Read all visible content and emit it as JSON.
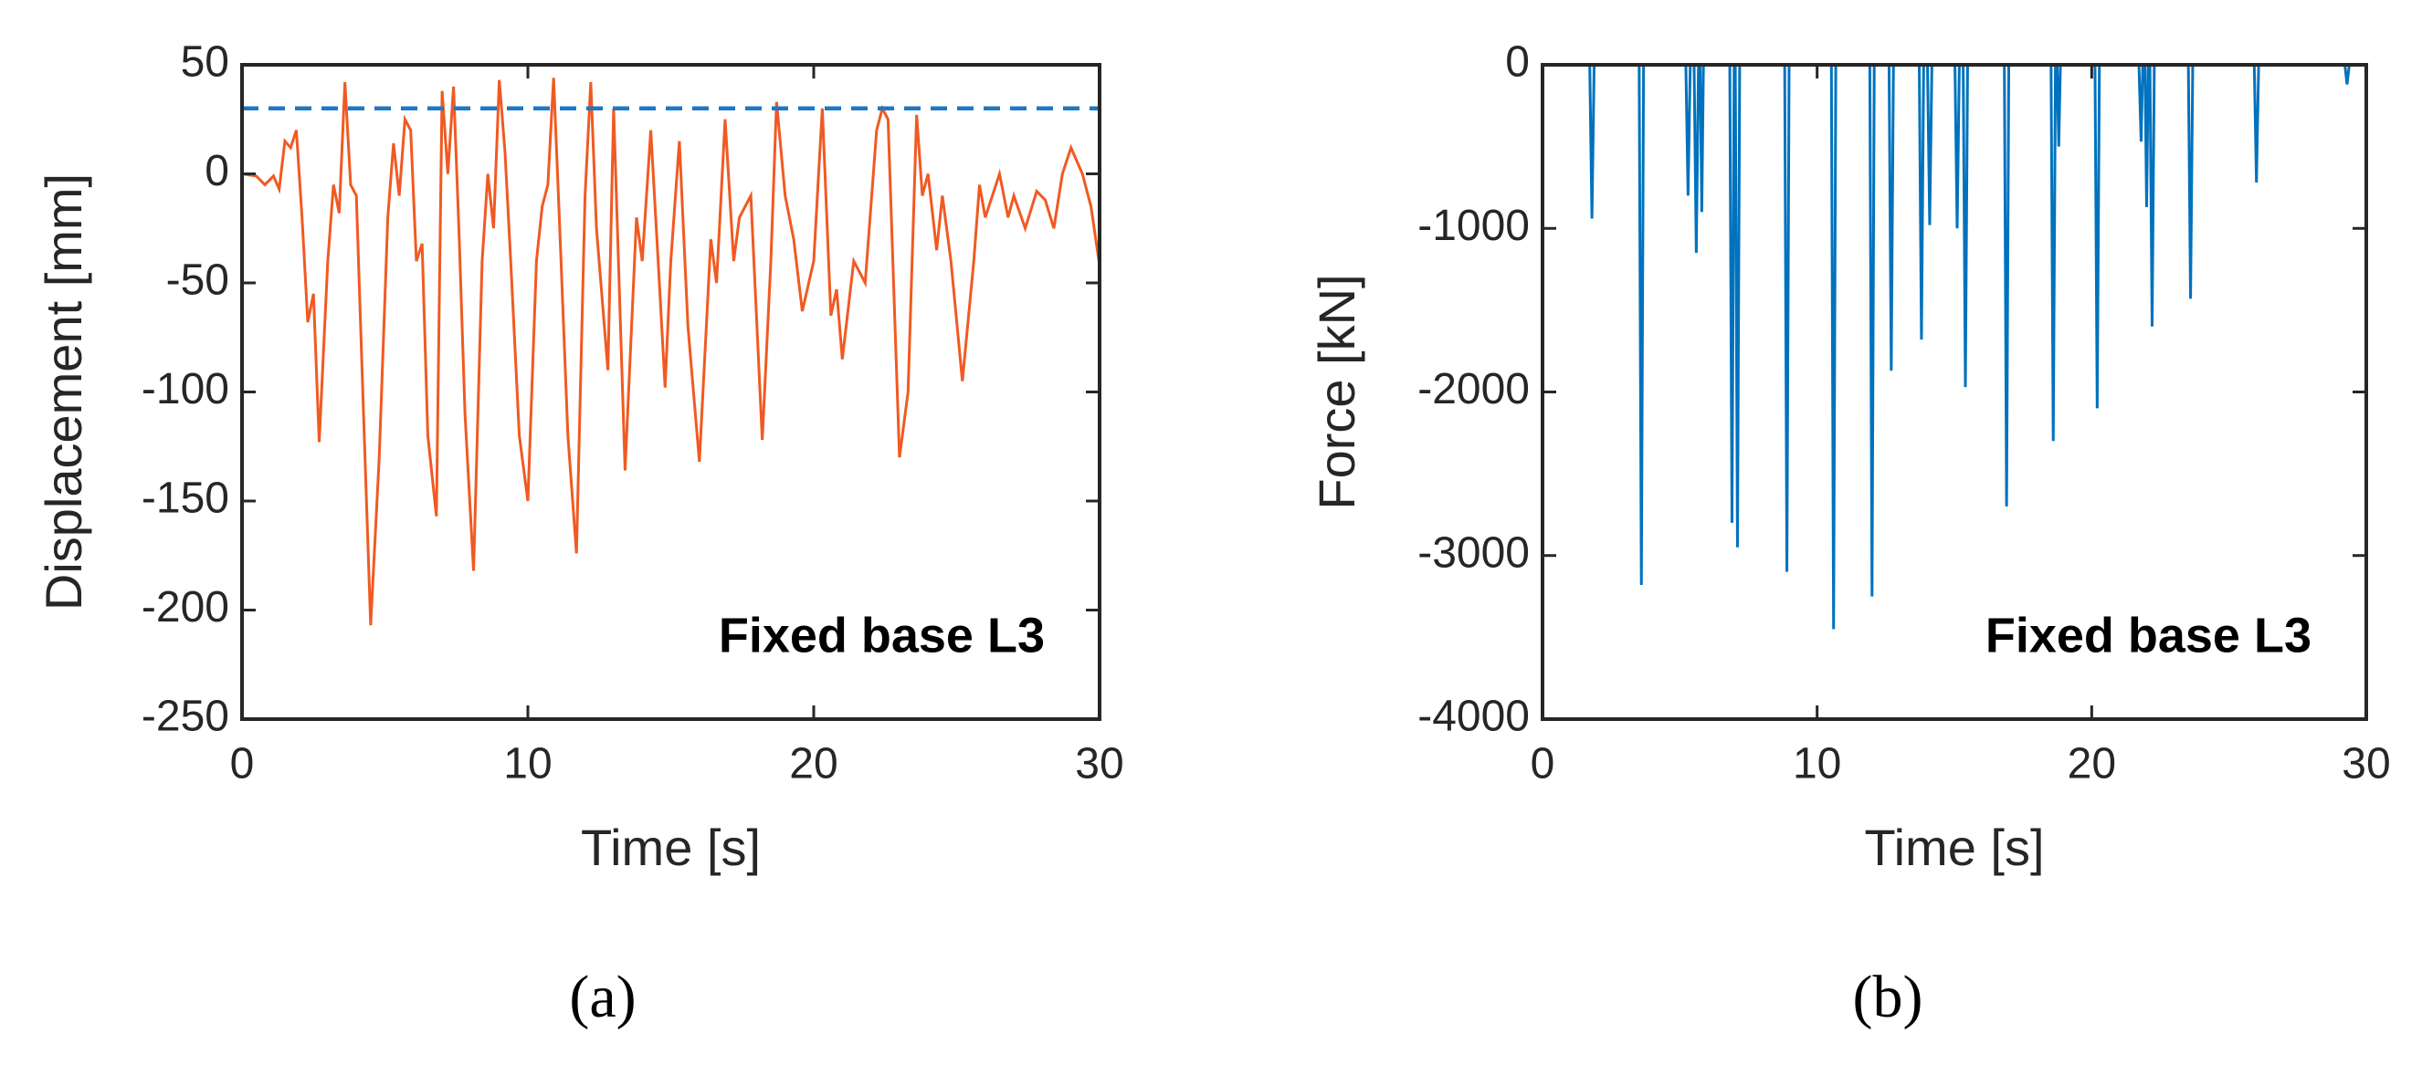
{
  "chart_data": [
    {
      "type": "line",
      "ylabel": "Displacement [mm]",
      "xlabel": "Time [s]",
      "annotation": "Fixed base L3",
      "label": "(a)",
      "xlim": [
        0,
        30
      ],
      "ylim": [
        -250,
        50
      ],
      "xticks": [
        0,
        10,
        20,
        30
      ],
      "yticks": [
        -250,
        -200,
        -150,
        -100,
        -50,
        0,
        50
      ],
      "series": [
        {
          "color": "#f05a22",
          "dashed": false,
          "x": [
            0,
            0.5,
            0.8,
            1.1,
            1.3,
            1.5,
            1.7,
            1.9,
            2.1,
            2.3,
            2.5,
            2.7,
            3.0,
            3.2,
            3.4,
            3.6,
            3.8,
            4.0,
            4.2,
            4.5,
            4.8,
            5.1,
            5.3,
            5.5,
            5.7,
            5.9,
            6.1,
            6.3,
            6.5,
            6.8,
            7.0,
            7.2,
            7.4,
            7.6,
            7.8,
            8.1,
            8.4,
            8.6,
            8.8,
            9.0,
            9.2,
            9.4,
            9.7,
            10.0,
            10.3,
            10.5,
            10.7,
            10.9,
            11.1,
            11.4,
            11.7,
            12.0,
            12.2,
            12.4,
            12.8,
            13.0,
            13.4,
            13.8,
            14.0,
            14.3,
            14.6,
            14.8,
            15.0,
            15.3,
            15.6,
            16.0,
            16.4,
            16.6,
            16.9,
            17.2,
            17.4,
            17.8,
            18.2,
            18.5,
            18.7,
            19.0,
            19.3,
            19.6,
            20.0,
            20.3,
            20.6,
            20.8,
            21.0,
            21.4,
            21.8,
            22.2,
            22.4,
            22.6,
            23.0,
            23.3,
            23.6,
            23.8,
            24.0,
            24.3,
            24.5,
            24.8,
            25.2,
            25.6,
            25.8,
            26.0,
            26.5,
            26.8,
            27.0,
            27.4,
            27.8,
            28.1,
            28.4,
            28.7,
            29.0,
            29.4,
            29.7,
            30.0
          ],
          "values": [
            0,
            -1,
            -5,
            -1,
            -7,
            15,
            12,
            20,
            -20,
            -68,
            -55,
            -123,
            -40,
            -5,
            -18,
            42,
            -5,
            -10,
            -90,
            -207,
            -130,
            -20,
            14,
            -10,
            25,
            20,
            -40,
            -32,
            -120,
            -157,
            38,
            0,
            40,
            -30,
            -110,
            -182,
            -40,
            0,
            -25,
            43,
            10,
            -40,
            -120,
            -150,
            -40,
            -15,
            -5,
            44,
            -20,
            -120,
            -174,
            -10,
            42,
            -25,
            -90,
            30,
            -136,
            -20,
            -40,
            20,
            -50,
            -98,
            -40,
            15,
            -70,
            -132,
            -30,
            -50,
            25,
            -40,
            -20,
            -10,
            -122,
            -40,
            33,
            -10,
            -30,
            -63,
            -40,
            30,
            -65,
            -53,
            -85,
            -40,
            -50,
            20,
            30,
            25,
            -130,
            -100,
            27,
            -10,
            0,
            -35,
            -10,
            -40,
            -95,
            -40,
            -5,
            -20,
            0,
            -20,
            -10,
            -25,
            -8,
            -12,
            -25,
            0,
            12,
            0,
            -15,
            -42
          ]
        },
        {
          "color": "#1f77c4",
          "dashed": true,
          "x": [
            0,
            30
          ],
          "values": [
            30,
            30
          ]
        }
      ]
    },
    {
      "type": "line",
      "ylabel": "Force [kN]",
      "xlabel": "Time [s]",
      "annotation": "Fixed base L3",
      "label": "(b)",
      "xlim": [
        0,
        30
      ],
      "ylim": [
        -4000,
        0
      ],
      "xticks": [
        0,
        10,
        20,
        30
      ],
      "yticks": [
        -4000,
        -3000,
        -2000,
        -1000,
        0
      ],
      "series": [
        {
          "color": "#0072bd",
          "dashed": false,
          "x": [
            0,
            1.72,
            1.8,
            1.88,
            3.52,
            3.6,
            3.68,
            5.22,
            5.3,
            5.38,
            5.52,
            5.6,
            5.68,
            5.74,
            5.8,
            5.86,
            6.82,
            6.9,
            6.98,
            7.02,
            7.1,
            7.18,
            8.82,
            8.9,
            8.98,
            10.52,
            10.6,
            10.68,
            11.92,
            12.0,
            12.08,
            12.62,
            12.7,
            12.78,
            13.72,
            13.8,
            13.88,
            14.02,
            14.1,
            14.18,
            15.02,
            15.1,
            15.18,
            15.32,
            15.4,
            15.48,
            16.82,
            16.9,
            16.98,
            18.52,
            18.6,
            18.68,
            18.74,
            18.8,
            18.86,
            20.12,
            20.2,
            20.28,
            21.72,
            21.8,
            21.86,
            21.94,
            22.0,
            22.06,
            22.12,
            22.2,
            22.28,
            23.52,
            23.6,
            23.68,
            25.92,
            26.0,
            26.08,
            29.22,
            29.3,
            29.38,
            30
          ],
          "values": [
            0,
            0,
            -940,
            0,
            0,
            -3180,
            0,
            0,
            -800,
            0,
            0,
            -1150,
            0,
            0,
            -900,
            0,
            0,
            -2800,
            0,
            0,
            -2950,
            0,
            0,
            -3100,
            0,
            0,
            -3450,
            0,
            0,
            -3250,
            0,
            0,
            -1870,
            0,
            0,
            -1680,
            0,
            0,
            -980,
            0,
            0,
            -1000,
            0,
            0,
            -1970,
            0,
            0,
            -2700,
            0,
            0,
            -2300,
            0,
            0,
            -500,
            0,
            0,
            -2100,
            0,
            0,
            -470,
            0,
            0,
            -870,
            0,
            0,
            -1600,
            0,
            0,
            -1430,
            0,
            0,
            -720,
            0,
            0,
            -120,
            0,
            0
          ]
        }
      ]
    }
  ]
}
